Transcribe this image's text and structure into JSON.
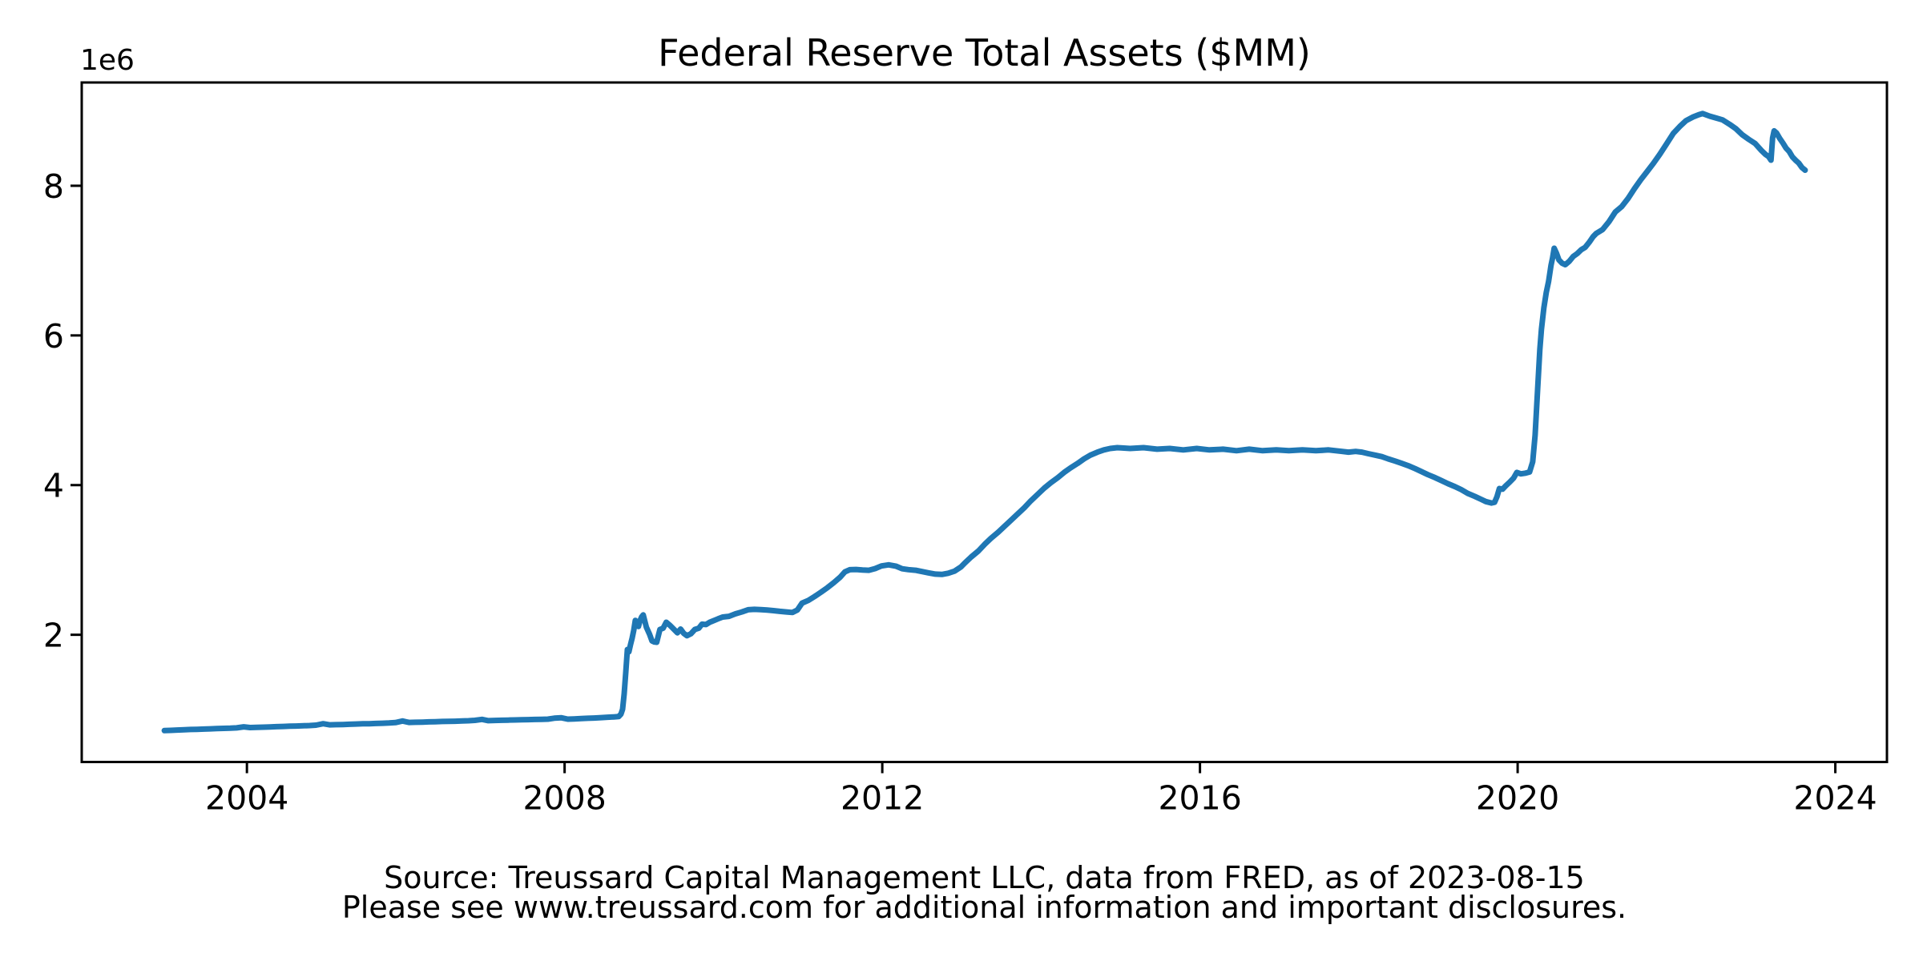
{
  "chart_data": {
    "type": "line",
    "title": "Federal Reserve Total Assets ($MM)",
    "xlabel": "",
    "ylabel": "",
    "y_axis_offset_label": "1e6",
    "grid": false,
    "legend": "none",
    "line_color": "#1f77b4",
    "axis_color": "#000000",
    "xlim": [
      2001.92,
      2024.65
    ],
    "ylim": [
      300000,
      9380000
    ],
    "x_ticks": [
      2004,
      2008,
      2012,
      2016,
      2020,
      2024
    ],
    "x_tick_labels": [
      "2004",
      "2008",
      "2012",
      "2016",
      "2020",
      "2024"
    ],
    "y_ticks": [
      2000000,
      4000000,
      6000000,
      8000000
    ],
    "y_tick_labels": [
      "2",
      "4",
      "6",
      "8"
    ],
    "series": [
      {
        "points": [
          [
            2002.96,
            719000
          ],
          [
            2003.04,
            723000
          ],
          [
            2003.12,
            727000
          ],
          [
            2003.21,
            731000
          ],
          [
            2003.29,
            735000
          ],
          [
            2003.37,
            737000
          ],
          [
            2003.46,
            740000
          ],
          [
            2003.54,
            743000
          ],
          [
            2003.62,
            746000
          ],
          [
            2003.71,
            749000
          ],
          [
            2003.79,
            752000
          ],
          [
            2003.87,
            756000
          ],
          [
            2003.96,
            770000
          ],
          [
            2004.04,
            760000
          ],
          [
            2004.12,
            763000
          ],
          [
            2004.21,
            766000
          ],
          [
            2004.29,
            769000
          ],
          [
            2004.37,
            772000
          ],
          [
            2004.46,
            775000
          ],
          [
            2004.54,
            778000
          ],
          [
            2004.62,
            781000
          ],
          [
            2004.71,
            784000
          ],
          [
            2004.79,
            787000
          ],
          [
            2004.87,
            792000
          ],
          [
            2004.96,
            811000
          ],
          [
            2005.04,
            797000
          ],
          [
            2005.12,
            799000
          ],
          [
            2005.21,
            801000
          ],
          [
            2005.29,
            804000
          ],
          [
            2005.37,
            807000
          ],
          [
            2005.46,
            810000
          ],
          [
            2005.54,
            812000
          ],
          [
            2005.62,
            815000
          ],
          [
            2005.71,
            818000
          ],
          [
            2005.79,
            821000
          ],
          [
            2005.87,
            826000
          ],
          [
            2005.96,
            848000
          ],
          [
            2006.04,
            829000
          ],
          [
            2006.12,
            831000
          ],
          [
            2006.21,
            833000
          ],
          [
            2006.29,
            836000
          ],
          [
            2006.37,
            838000
          ],
          [
            2006.46,
            841000
          ],
          [
            2006.54,
            843000
          ],
          [
            2006.62,
            845000
          ],
          [
            2006.71,
            848000
          ],
          [
            2006.79,
            851000
          ],
          [
            2006.87,
            856000
          ],
          [
            2006.96,
            869000
          ],
          [
            2007.04,
            852000
          ],
          [
            2007.12,
            855000
          ],
          [
            2007.21,
            857000
          ],
          [
            2007.29,
            860000
          ],
          [
            2007.37,
            862000
          ],
          [
            2007.46,
            864000
          ],
          [
            2007.54,
            866000
          ],
          [
            2007.62,
            868000
          ],
          [
            2007.71,
            870000
          ],
          [
            2007.79,
            873000
          ],
          [
            2007.87,
            885000
          ],
          [
            2007.96,
            891000
          ],
          [
            2008.04,
            873000
          ],
          [
            2008.12,
            876000
          ],
          [
            2008.21,
            880000
          ],
          [
            2008.29,
            884000
          ],
          [
            2008.37,
            888000
          ],
          [
            2008.46,
            893000
          ],
          [
            2008.54,
            898000
          ],
          [
            2008.62,
            903000
          ],
          [
            2008.68,
            907000
          ],
          [
            2008.71,
            940000
          ],
          [
            2008.73,
            1004000
          ],
          [
            2008.75,
            1211000
          ],
          [
            2008.77,
            1499000
          ],
          [
            2008.79,
            1804000
          ],
          [
            2008.81,
            1774000
          ],
          [
            2008.83,
            1868000
          ],
          [
            2008.85,
            1953000
          ],
          [
            2008.87,
            2056000
          ],
          [
            2008.89,
            2192000
          ],
          [
            2008.91,
            2123000
          ],
          [
            2008.93,
            2111000
          ],
          [
            2008.95,
            2190000
          ],
          [
            2008.97,
            2239000
          ],
          [
            2008.99,
            2266000
          ],
          [
            2009.03,
            2101000
          ],
          [
            2009.07,
            2006000
          ],
          [
            2009.1,
            1918000
          ],
          [
            2009.13,
            1903000
          ],
          [
            2009.16,
            1900000
          ],
          [
            2009.2,
            2071000
          ],
          [
            2009.24,
            2087000
          ],
          [
            2009.28,
            2167000
          ],
          [
            2009.32,
            2132000
          ],
          [
            2009.37,
            2081000
          ],
          [
            2009.42,
            2026000
          ],
          [
            2009.46,
            2076000
          ],
          [
            2009.5,
            2020000
          ],
          [
            2009.54,
            1988000
          ],
          [
            2009.59,
            2013000
          ],
          [
            2009.64,
            2071000
          ],
          [
            2009.69,
            2088000
          ],
          [
            2009.73,
            2142000
          ],
          [
            2009.78,
            2136000
          ],
          [
            2009.83,
            2168000
          ],
          [
            2009.88,
            2190000
          ],
          [
            2009.93,
            2212000
          ],
          [
            2009.99,
            2237000
          ],
          [
            2010.07,
            2247000
          ],
          [
            2010.15,
            2280000
          ],
          [
            2010.23,
            2304000
          ],
          [
            2010.31,
            2334000
          ],
          [
            2010.39,
            2340000
          ],
          [
            2010.47,
            2336000
          ],
          [
            2010.55,
            2330000
          ],
          [
            2010.63,
            2323000
          ],
          [
            2010.71,
            2313000
          ],
          [
            2010.79,
            2305000
          ],
          [
            2010.87,
            2298000
          ],
          [
            2010.93,
            2330000
          ],
          [
            2010.99,
            2423000
          ],
          [
            2011.07,
            2460000
          ],
          [
            2011.15,
            2513000
          ],
          [
            2011.23,
            2570000
          ],
          [
            2011.31,
            2630000
          ],
          [
            2011.39,
            2697000
          ],
          [
            2011.47,
            2770000
          ],
          [
            2011.53,
            2840000
          ],
          [
            2011.59,
            2869000
          ],
          [
            2011.67,
            2873000
          ],
          [
            2011.75,
            2866000
          ],
          [
            2011.83,
            2862000
          ],
          [
            2011.91,
            2884000
          ],
          [
            2011.99,
            2920000
          ],
          [
            2012.08,
            2935000
          ],
          [
            2012.17,
            2918000
          ],
          [
            2012.25,
            2882000
          ],
          [
            2012.33,
            2870000
          ],
          [
            2012.42,
            2862000
          ],
          [
            2012.5,
            2845000
          ],
          [
            2012.58,
            2828000
          ],
          [
            2012.67,
            2810000
          ],
          [
            2012.75,
            2806000
          ],
          [
            2012.83,
            2822000
          ],
          [
            2012.91,
            2850000
          ],
          [
            2012.99,
            2907000
          ],
          [
            2013.04,
            2960000
          ],
          [
            2013.12,
            3040000
          ],
          [
            2013.21,
            3120000
          ],
          [
            2013.29,
            3210000
          ],
          [
            2013.37,
            3290000
          ],
          [
            2013.46,
            3370000
          ],
          [
            2013.54,
            3450000
          ],
          [
            2013.62,
            3530000
          ],
          [
            2013.71,
            3620000
          ],
          [
            2013.79,
            3700000
          ],
          [
            2013.87,
            3790000
          ],
          [
            2013.96,
            3880000
          ],
          [
            2014.04,
            3960000
          ],
          [
            2014.12,
            4030000
          ],
          [
            2014.21,
            4100000
          ],
          [
            2014.29,
            4170000
          ],
          [
            2014.37,
            4230000
          ],
          [
            2014.46,
            4290000
          ],
          [
            2014.54,
            4350000
          ],
          [
            2014.62,
            4400000
          ],
          [
            2014.71,
            4440000
          ],
          [
            2014.79,
            4470000
          ],
          [
            2014.87,
            4490000
          ],
          [
            2014.96,
            4500000
          ],
          [
            2015.12,
            4490000
          ],
          [
            2015.29,
            4500000
          ],
          [
            2015.46,
            4480000
          ],
          [
            2015.62,
            4490000
          ],
          [
            2015.79,
            4470000
          ],
          [
            2015.96,
            4490000
          ],
          [
            2016.12,
            4470000
          ],
          [
            2016.29,
            4480000
          ],
          [
            2016.46,
            4460000
          ],
          [
            2016.62,
            4480000
          ],
          [
            2016.79,
            4460000
          ],
          [
            2016.96,
            4470000
          ],
          [
            2017.12,
            4460000
          ],
          [
            2017.29,
            4470000
          ],
          [
            2017.46,
            4460000
          ],
          [
            2017.62,
            4470000
          ],
          [
            2017.79,
            4450000
          ],
          [
            2017.87,
            4440000
          ],
          [
            2017.96,
            4450000
          ],
          [
            2018.04,
            4440000
          ],
          [
            2018.12,
            4420000
          ],
          [
            2018.21,
            4400000
          ],
          [
            2018.29,
            4380000
          ],
          [
            2018.37,
            4350000
          ],
          [
            2018.46,
            4320000
          ],
          [
            2018.54,
            4290000
          ],
          [
            2018.62,
            4260000
          ],
          [
            2018.71,
            4220000
          ],
          [
            2018.79,
            4180000
          ],
          [
            2018.87,
            4140000
          ],
          [
            2018.96,
            4100000
          ],
          [
            2019.04,
            4060000
          ],
          [
            2019.12,
            4020000
          ],
          [
            2019.21,
            3980000
          ],
          [
            2019.29,
            3940000
          ],
          [
            2019.37,
            3890000
          ],
          [
            2019.46,
            3850000
          ],
          [
            2019.54,
            3810000
          ],
          [
            2019.6,
            3780000
          ],
          [
            2019.67,
            3761000
          ],
          [
            2019.71,
            3770000
          ],
          [
            2019.74,
            3845000
          ],
          [
            2019.77,
            3955000
          ],
          [
            2019.81,
            3946000
          ],
          [
            2019.85,
            3990000
          ],
          [
            2019.9,
            4040000
          ],
          [
            2019.95,
            4095000
          ],
          [
            2019.99,
            4170000
          ],
          [
            2020.04,
            4150000
          ],
          [
            2020.1,
            4160000
          ],
          [
            2020.15,
            4175000
          ],
          [
            2020.19,
            4312000
          ],
          [
            2020.22,
            4668000
          ],
          [
            2020.25,
            5254000
          ],
          [
            2020.28,
            5812000
          ],
          [
            2020.3,
            6083000
          ],
          [
            2020.33,
            6367000
          ],
          [
            2020.36,
            6573000
          ],
          [
            2020.39,
            6721000
          ],
          [
            2020.42,
            6934000
          ],
          [
            2020.44,
            7037000
          ],
          [
            2020.46,
            7165000
          ],
          [
            2020.49,
            7095000
          ],
          [
            2020.52,
            7009000
          ],
          [
            2020.56,
            6965000
          ],
          [
            2020.6,
            6945000
          ],
          [
            2020.65,
            6990000
          ],
          [
            2020.7,
            7056000
          ],
          [
            2020.75,
            7093000
          ],
          [
            2020.8,
            7145000
          ],
          [
            2020.85,
            7177000
          ],
          [
            2020.9,
            7243000
          ],
          [
            2020.95,
            7320000
          ],
          [
            2020.99,
            7363000
          ],
          [
            2021.07,
            7415000
          ],
          [
            2021.15,
            7520000
          ],
          [
            2021.23,
            7650000
          ],
          [
            2021.31,
            7720000
          ],
          [
            2021.39,
            7830000
          ],
          [
            2021.47,
            7960000
          ],
          [
            2021.55,
            8080000
          ],
          [
            2021.63,
            8190000
          ],
          [
            2021.71,
            8300000
          ],
          [
            2021.79,
            8420000
          ],
          [
            2021.87,
            8550000
          ],
          [
            2021.96,
            8700000
          ],
          [
            2022.04,
            8790000
          ],
          [
            2022.12,
            8870000
          ],
          [
            2022.21,
            8920000
          ],
          [
            2022.28,
            8950000
          ],
          [
            2022.33,
            8965000
          ],
          [
            2022.42,
            8930000
          ],
          [
            2022.5,
            8905000
          ],
          [
            2022.58,
            8880000
          ],
          [
            2022.67,
            8820000
          ],
          [
            2022.75,
            8760000
          ],
          [
            2022.83,
            8680000
          ],
          [
            2022.91,
            8620000
          ],
          [
            2022.99,
            8565000
          ],
          [
            2023.07,
            8470000
          ],
          [
            2023.12,
            8420000
          ],
          [
            2023.16,
            8390000
          ],
          [
            2023.19,
            8342000
          ],
          [
            2023.21,
            8639000
          ],
          [
            2023.23,
            8734000
          ],
          [
            2023.26,
            8706000
          ],
          [
            2023.3,
            8632000
          ],
          [
            2023.34,
            8570000
          ],
          [
            2023.38,
            8503000
          ],
          [
            2023.42,
            8456000
          ],
          [
            2023.46,
            8386000
          ],
          [
            2023.5,
            8341000
          ],
          [
            2023.54,
            8302000
          ],
          [
            2023.58,
            8243000
          ],
          [
            2023.62,
            8208000
          ]
        ]
      }
    ]
  },
  "footer": {
    "line1": "Source: Treussard Capital Management LLC, data from FRED, as of 2023-08-15",
    "line2": "Please see www.treussard.com for additional information and important disclosures."
  }
}
